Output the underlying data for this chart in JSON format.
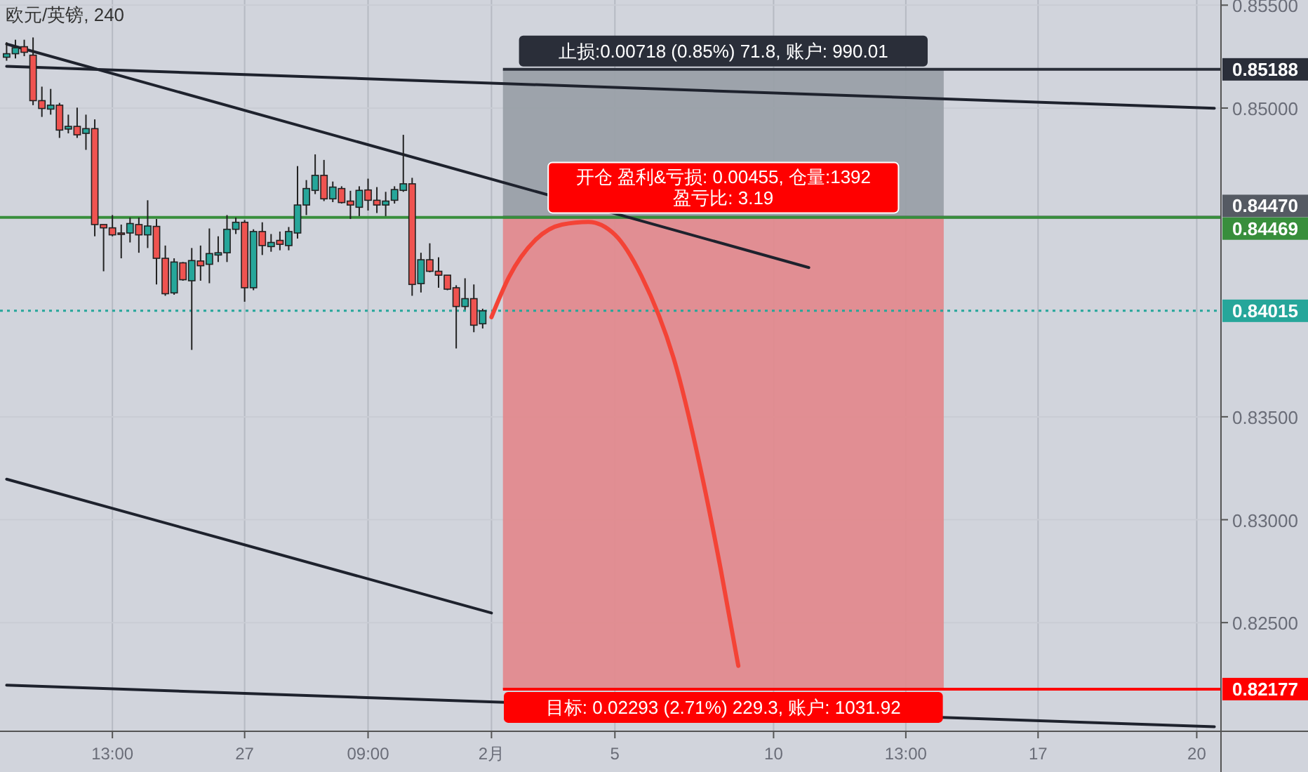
{
  "chart_data": {
    "type": "candlestick",
    "title": "欧元/英镑, 240",
    "categories": [
      null,
      null,
      null,
      null,
      null,
      null,
      null,
      null,
      null,
      null,
      null,
      null,
      "13:00",
      null,
      null,
      null,
      null,
      null,
      null,
      null,
      null,
      null,
      null,
      null,
      null,
      null,
      null,
      "27",
      null,
      null,
      null,
      null,
      null,
      null,
      null,
      null,
      null,
      null,
      null,
      null,
      null,
      "09:00",
      null,
      null,
      null,
      null,
      null,
      null,
      null,
      null,
      null,
      null,
      null,
      null,
      null,
      "2月",
      null,
      null,
      null,
      null,
      null,
      null,
      null,
      null,
      null,
      null,
      null,
      null,
      null,
      "5",
      null,
      null,
      null,
      null,
      null,
      null,
      null,
      null,
      null,
      null,
      null,
      null,
      null,
      null,
      null,
      null,
      null,
      "10",
      null,
      null,
      null,
      null,
      null,
      null,
      null,
      null,
      null,
      null,
      null,
      null,
      null,
      null,
      "13:00",
      null,
      null,
      null,
      null,
      null,
      null,
      null,
      null,
      null,
      null,
      null,
      null,
      null,
      null,
      "17",
      null,
      null,
      null,
      null,
      null,
      null,
      null,
      null,
      null,
      null,
      null,
      null,
      null,
      null,
      null,
      null,
      null,
      "20",
      null,
      null
    ],
    "ohlc": [
      [
        0.85247,
        0.8532,
        0.8523,
        0.85264
      ],
      [
        0.85264,
        0.85332,
        0.85241,
        0.85293
      ],
      [
        0.85298,
        0.85332,
        0.85252,
        0.85271
      ],
      [
        0.85257,
        0.85343,
        0.85014,
        0.85036
      ],
      [
        0.85036,
        0.85104,
        0.84957,
        0.84998
      ],
      [
        0.84995,
        0.85093,
        0.84968,
        0.85014
      ],
      [
        0.85014,
        0.85025,
        0.84855,
        0.84893
      ],
      [
        0.84898,
        0.84968,
        0.84877,
        0.84911
      ],
      [
        0.84911,
        0.85002,
        0.84855,
        0.8487
      ],
      [
        0.84877,
        0.84968,
        0.84797,
        0.849
      ],
      [
        0.849,
        0.84945,
        0.84377,
        0.84434
      ],
      [
        0.84434,
        0.84434,
        0.84207,
        0.84418
      ],
      [
        0.84418,
        0.8448,
        0.84377,
        0.84384
      ],
      [
        0.84393,
        0.84434,
        0.8427,
        0.84386
      ],
      [
        0.84393,
        0.84468,
        0.84347,
        0.84439
      ],
      [
        0.84434,
        0.84468,
        0.84297,
        0.84384
      ],
      [
        0.84384,
        0.84552,
        0.8432,
        0.84427
      ],
      [
        0.84425,
        0.84461,
        0.84143,
        0.8427
      ],
      [
        0.8427,
        0.84332,
        0.84088,
        0.84098
      ],
      [
        0.84102,
        0.8427,
        0.84093,
        0.84252
      ],
      [
        0.84248,
        0.84252,
        0.84161,
        0.84166
      ],
      [
        0.84161,
        0.8432,
        0.83825,
        0.84259
      ],
      [
        0.84257,
        0.84332,
        0.84161,
        0.84234
      ],
      [
        0.84241,
        0.84415,
        0.84149,
        0.84293
      ],
      [
        0.84286,
        0.84377,
        0.84252,
        0.84297
      ],
      [
        0.84297,
        0.8448,
        0.84252,
        0.84411
      ],
      [
        0.84411,
        0.84468,
        0.84388,
        0.84445
      ],
      [
        0.84445,
        0.84456,
        0.84059,
        0.84127
      ],
      [
        0.84127,
        0.84411,
        0.84115,
        0.844
      ],
      [
        0.844,
        0.84445,
        0.84286,
        0.84332
      ],
      [
        0.84327,
        0.84388,
        0.84302,
        0.84347
      ],
      [
        0.84357,
        0.844,
        0.84309,
        0.84338
      ],
      [
        0.84332,
        0.84422,
        0.84309,
        0.844
      ],
      [
        0.84393,
        0.84718,
        0.84366,
        0.84529
      ],
      [
        0.84529,
        0.8465,
        0.8448,
        0.84609
      ],
      [
        0.846,
        0.84775,
        0.84582,
        0.84673
      ],
      [
        0.84673,
        0.84748,
        0.84548,
        0.84559
      ],
      [
        0.84559,
        0.84643,
        0.84543,
        0.84616
      ],
      [
        0.84609,
        0.8462,
        0.84536,
        0.84541
      ],
      [
        0.84548,
        0.84598,
        0.84461,
        0.84529
      ],
      [
        0.84518,
        0.8462,
        0.84475,
        0.846
      ],
      [
        0.84602,
        0.84657,
        0.84502,
        0.84552
      ],
      [
        0.84552,
        0.84616,
        0.8449,
        0.84529
      ],
      [
        0.84529,
        0.84593,
        0.84475,
        0.84548
      ],
      [
        0.84552,
        0.8462,
        0.84536,
        0.84604
      ],
      [
        0.846,
        0.8487,
        0.84593,
        0.84632
      ],
      [
        0.84632,
        0.84661,
        0.84088,
        0.84143
      ],
      [
        0.84147,
        0.84297,
        0.84104,
        0.84263
      ],
      [
        0.84263,
        0.84343,
        0.84202,
        0.84207
      ],
      [
        0.84207,
        0.84275,
        0.84127,
        0.84188
      ],
      [
        0.84188,
        0.84188,
        0.84115,
        0.8412
      ],
      [
        0.84127,
        0.84139,
        0.83832,
        0.84036
      ],
      [
        0.84036,
        0.84173,
        0.8402,
        0.84074
      ],
      [
        0.84074,
        0.84143,
        0.83911,
        0.83945
      ],
      [
        0.83952,
        0.84025,
        0.83929,
        0.84015
      ],
      null,
      null,
      null,
      null,
      null,
      null,
      null,
      null,
      null,
      null,
      null,
      null,
      null,
      null,
      null,
      null,
      null,
      null,
      null,
      null,
      null,
      null,
      null,
      null,
      null,
      null,
      null,
      null,
      null,
      null,
      null,
      null,
      null,
      null,
      null,
      null,
      null,
      null,
      null,
      null,
      null,
      null,
      null,
      null,
      null,
      null,
      null,
      null,
      null,
      null,
      null,
      null,
      null,
      null,
      null,
      null,
      null,
      null,
      null,
      null,
      null,
      null,
      null,
      null,
      null,
      null,
      null,
      null,
      null,
      null,
      null,
      null,
      null,
      null,
      null,
      null,
      null,
      null,
      null,
      null,
      null,
      null,
      null
    ],
    "series": [
      {
        "type": "line",
        "color": "#1e222d",
        "values": [
          0.85311,
          null,
          null,
          null,
          null,
          null,
          null,
          null,
          null,
          null,
          null,
          null,
          null,
          null,
          null,
          null,
          null,
          null,
          null,
          null,
          null,
          null,
          null,
          null,
          null,
          null,
          null,
          null,
          null,
          null,
          null,
          null,
          null,
          null,
          null,
          null,
          null,
          null,
          null,
          null,
          null,
          null,
          null,
          null,
          null,
          null,
          null,
          null,
          null,
          null,
          null,
          null,
          null,
          null,
          null,
          null,
          null,
          null,
          null,
          null,
          null,
          null,
          null,
          null,
          null,
          null,
          null,
          null,
          null,
          null,
          null,
          null,
          null,
          null,
          null,
          null,
          null,
          null,
          null,
          null,
          null,
          null,
          null,
          null,
          null,
          null,
          null,
          null,
          null,
          null,
          null,
          0.84225,
          null,
          null,
          null,
          null,
          null,
          null,
          null,
          null,
          null,
          null,
          null,
          null,
          null,
          null,
          null,
          null,
          null,
          null,
          null,
          null,
          null,
          null,
          null,
          null,
          null,
          null,
          null,
          null,
          null,
          null,
          null,
          null,
          null,
          null,
          null,
          null,
          null,
          null,
          null,
          null,
          null,
          null,
          null,
          null,
          null,
          null
        ]
      },
      {
        "type": "line",
        "color": "#1e222d",
        "values": [
          0.85203,
          null,
          null,
          null,
          null,
          null,
          null,
          null,
          null,
          null,
          null,
          null,
          null,
          null,
          null,
          null,
          null,
          null,
          null,
          null,
          null,
          null,
          null,
          null,
          null,
          null,
          null,
          null,
          null,
          null,
          null,
          null,
          null,
          null,
          null,
          null,
          null,
          null,
          null,
          null,
          null,
          null,
          null,
          null,
          null,
          null,
          null,
          null,
          null,
          null,
          null,
          null,
          null,
          null,
          null,
          null,
          null,
          null,
          null,
          null,
          null,
          null,
          null,
          null,
          null,
          null,
          null,
          null,
          null,
          null,
          null,
          null,
          null,
          null,
          null,
          null,
          null,
          null,
          null,
          null,
          null,
          null,
          null,
          null,
          null,
          null,
          null,
          null,
          null,
          null,
          null,
          null,
          null,
          null,
          null,
          null,
          null,
          null,
          null,
          null,
          null,
          null,
          null,
          null,
          null,
          null,
          null,
          null,
          null,
          null,
          null,
          null,
          null,
          null,
          null,
          null,
          null,
          null,
          null,
          null,
          null,
          null,
          null,
          null,
          null,
          null,
          null,
          null,
          null,
          null,
          null,
          null,
          null,
          null,
          null,
          null,
          null,
          0.84999
        ]
      },
      {
        "type": "line",
        "color": "#1e222d",
        "values": [
          0.83197,
          null,
          null,
          null,
          null,
          null,
          null,
          null,
          null,
          null,
          null,
          null,
          null,
          null,
          null,
          null,
          null,
          null,
          null,
          null,
          null,
          null,
          null,
          null,
          null,
          null,
          null,
          null,
          null,
          null,
          null,
          null,
          null,
          null,
          null,
          null,
          null,
          null,
          null,
          null,
          null,
          null,
          null,
          null,
          null,
          null,
          null,
          null,
          null,
          null,
          null,
          null,
          null,
          null,
          null,
          0.82547,
          null,
          null,
          null,
          null,
          null,
          null,
          null,
          null,
          null,
          null,
          null,
          null,
          null,
          null,
          null,
          null,
          null,
          null,
          null,
          null,
          null,
          null,
          null,
          null,
          null,
          null,
          null,
          null,
          null,
          null,
          null,
          null,
          null,
          null,
          null,
          null,
          null,
          null,
          null,
          null,
          null,
          null,
          null,
          null,
          null,
          null,
          null,
          null,
          null,
          null,
          null,
          null,
          null,
          null,
          null,
          null,
          null,
          null,
          null,
          null,
          null,
          null,
          null,
          null,
          null,
          null,
          null,
          null,
          null,
          null,
          null,
          null,
          null,
          null,
          null,
          null,
          null,
          null,
          null,
          null,
          null,
          null
        ]
      },
      {
        "type": "line",
        "color": "#1e222d",
        "values": [
          0.82196,
          null,
          null,
          null,
          null,
          null,
          null,
          null,
          null,
          null,
          null,
          null,
          null,
          null,
          null,
          null,
          null,
          null,
          null,
          null,
          null,
          null,
          null,
          null,
          null,
          null,
          null,
          null,
          null,
          null,
          null,
          null,
          null,
          null,
          null,
          null,
          null,
          null,
          null,
          null,
          null,
          null,
          null,
          null,
          null,
          null,
          null,
          null,
          null,
          null,
          null,
          null,
          null,
          null,
          null,
          null,
          null,
          null,
          null,
          null,
          null,
          null,
          null,
          null,
          null,
          null,
          null,
          null,
          null,
          null,
          null,
          null,
          null,
          null,
          null,
          null,
          null,
          null,
          null,
          null,
          null,
          null,
          null,
          null,
          null,
          null,
          null,
          null,
          null,
          null,
          null,
          null,
          null,
          null,
          null,
          null,
          null,
          null,
          null,
          null,
          null,
          null,
          null,
          null,
          null,
          null,
          null,
          null,
          null,
          null,
          null,
          null,
          null,
          null,
          null,
          null,
          null,
          null,
          null,
          null,
          null,
          null,
          null,
          null,
          null,
          null,
          null,
          null,
          null,
          null,
          null,
          null,
          null,
          null,
          null,
          null,
          null,
          0.81994
        ]
      },
      {
        "type": "line",
        "color": "#f44336",
        "values": [
          null,
          null,
          null,
          null,
          null,
          null,
          null,
          null,
          null,
          null,
          null,
          null,
          null,
          null,
          null,
          null,
          null,
          null,
          null,
          null,
          null,
          null,
          null,
          null,
          null,
          null,
          null,
          null,
          null,
          null,
          null,
          null,
          null,
          null,
          null,
          null,
          null,
          null,
          null,
          null,
          null,
          null,
          null,
          null,
          null,
          null,
          null,
          null,
          null,
          null,
          null,
          null,
          null,
          null,
          null,
          0.83984,
          null,
          0.8418,
          null,
          null,
          0.8436,
          null,
          null,
          0.84434,
          null,
          null,
          0.84447,
          null,
          null,
          0.84385,
          null,
          null,
          0.84185,
          null,
          null,
          null,
          0.83735,
          null,
          null,
          0.8319,
          null,
          0.8276,
          null,
          0.8229,
          null,
          null,
          null,
          null,
          null,
          null,
          null,
          null,
          null,
          null,
          null,
          null,
          null,
          null,
          null,
          null,
          null,
          null,
          null,
          null,
          null,
          null,
          null,
          null,
          null,
          null,
          null,
          null,
          null,
          null,
          null,
          null,
          null,
          null,
          null,
          null,
          null,
          null,
          null,
          null,
          null,
          null,
          null,
          null,
          null,
          null,
          null,
          null,
          null,
          null,
          null,
          null,
          null,
          null
        ]
      }
    ],
    "ylim": [
      0.81972,
      0.85525
    ],
    "yticks": [
      {
        "value": 0.855,
        "label": "0.85500"
      },
      {
        "value": 0.85,
        "label": "0.85000"
      },
      {
        "value": 0.835,
        "label": "0.83500"
      },
      {
        "value": 0.83,
        "label": "0.83000"
      },
      {
        "value": 0.825,
        "label": "0.82500"
      }
    ],
    "grid": true,
    "ref_lines": [
      {
        "axis": "y",
        "value": 0.85188,
        "label": "0.85188",
        "color": "#2a2e39"
      },
      {
        "axis": "y",
        "value": 0.8447,
        "label": "0.84470",
        "color": "#555a63"
      },
      {
        "axis": "y",
        "value": 0.84469,
        "label": "0.84469",
        "color": "#388e3c",
        "line_style": "solid"
      },
      {
        "axis": "y",
        "value": 0.84015,
        "label": "0.84015",
        "color": "#26a69a",
        "line_style": "dotted"
      },
      {
        "axis": "y",
        "value": 0.82177,
        "label": "0.82177",
        "color": "#ff0000"
      }
    ],
    "bands": [
      {
        "axis": "y",
        "from": 0.8447,
        "to": 0.85188,
        "label": "止损:0.00718 (0.85%) 71.8, 账户: 990.01",
        "color": "#9aa0a8"
      },
      {
        "axis": "y",
        "from": 0.82177,
        "to": 0.8447,
        "label": "目标: 0.02293 (2.71%) 229.3, 账户: 1031.92",
        "color": "#e28a8e"
      }
    ],
    "annotations": [
      {
        "text": "开仓 盈利&亏损: 0.00455, 仓量:1392\n盈亏比: 3.19",
        "y": 0.8447
      }
    ]
  }
}
